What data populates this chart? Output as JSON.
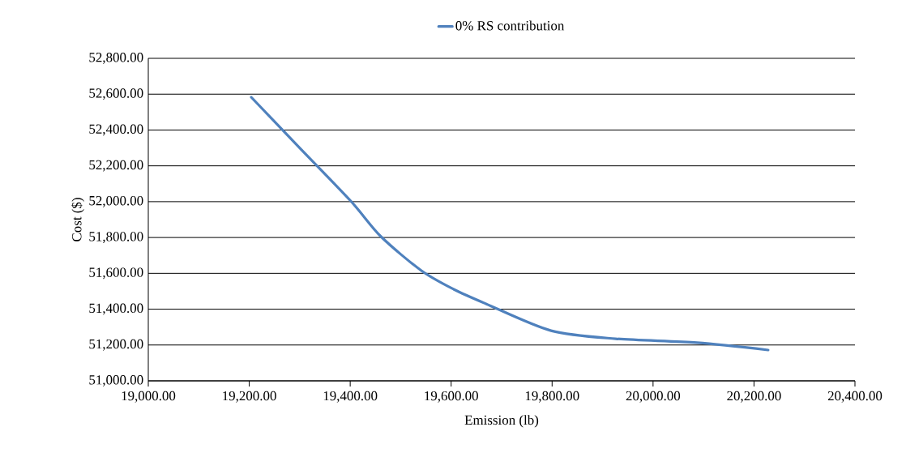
{
  "chart_data": {
    "type": "line",
    "xlabel": "Emission (lb)",
    "ylabel": "Cost ($)",
    "xlim": [
      19000,
      20400
    ],
    "ylim": [
      51000,
      52800
    ],
    "xticks": [
      {
        "value": 19000,
        "label": "19,000.00"
      },
      {
        "value": 19200,
        "label": "19,200.00"
      },
      {
        "value": 19400,
        "label": "19,400.00"
      },
      {
        "value": 19600,
        "label": "19,600.00"
      },
      {
        "value": 19800,
        "label": "19,800.00"
      },
      {
        "value": 20000,
        "label": "20,000.00"
      },
      {
        "value": 20200,
        "label": "20,200.00"
      },
      {
        "value": 20400,
        "label": "20,400.00"
      }
    ],
    "yticks": [
      {
        "value": 51000,
        "label": "51,000.00"
      },
      {
        "value": 51200,
        "label": "51,200.00"
      },
      {
        "value": 51400,
        "label": "51,400.00"
      },
      {
        "value": 51600,
        "label": "51,600.00"
      },
      {
        "value": 51800,
        "label": "51,800.00"
      },
      {
        "value": 52000,
        "label": "52,000.00"
      },
      {
        "value": 52200,
        "label": "52,200.00"
      },
      {
        "value": 52400,
        "label": "52,400.00"
      },
      {
        "value": 52600,
        "label": "52,600.00"
      },
      {
        "value": 52800,
        "label": "52,800.00"
      }
    ],
    "grid": "y",
    "legend": "top",
    "marker": "none",
    "line_style": "solid",
    "series": [
      {
        "name": "0% RS contribution",
        "color": "#4f81bd",
        "x": [
          19204,
          19300,
          19401,
          19461,
          19541,
          19605,
          19669,
          19798,
          19926,
          20087,
          20228
        ],
        "values": [
          52583,
          52300,
          52004,
          51805,
          51615,
          51511,
          51430,
          51280,
          51235,
          51213,
          51172
        ]
      }
    ]
  }
}
